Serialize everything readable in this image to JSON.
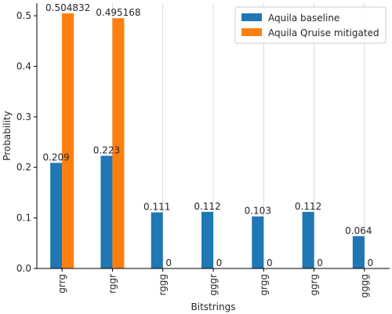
{
  "chart_data": {
    "type": "bar",
    "xlabel": "Bitstrings",
    "ylabel": "Probability",
    "ylim": [
      0,
      0.525
    ],
    "yticks": [
      0.0,
      0.1,
      0.2,
      0.3,
      0.4,
      0.5
    ],
    "ytick_labels": [
      "0.0",
      "0.1",
      "0.2",
      "0.3",
      "0.4",
      "0.5"
    ],
    "categories": [
      "grrg",
      "rggr",
      "rggg",
      "gggr",
      "grgg",
      "ggrg",
      "gggg"
    ],
    "series": [
      {
        "name": "Aquila baseline",
        "values": [
          0.209,
          0.223,
          0.111,
          0.112,
          0.103,
          0.112,
          0.064
        ],
        "labels": [
          "0.209",
          "0.223",
          "0.111",
          "0.112",
          "0.103",
          "0.112",
          "0.064"
        ],
        "color": "#1f77b4"
      },
      {
        "name": "Aquila Qruise mitigated",
        "values": [
          0.504832,
          0.495168,
          0,
          0,
          0,
          0,
          0
        ],
        "labels": [
          "0.504832",
          "0.495168",
          "0",
          "0",
          "0",
          "0",
          "0"
        ],
        "color": "#ff7f0e"
      }
    ],
    "grid": "vertical",
    "legend_position": "top-right"
  }
}
